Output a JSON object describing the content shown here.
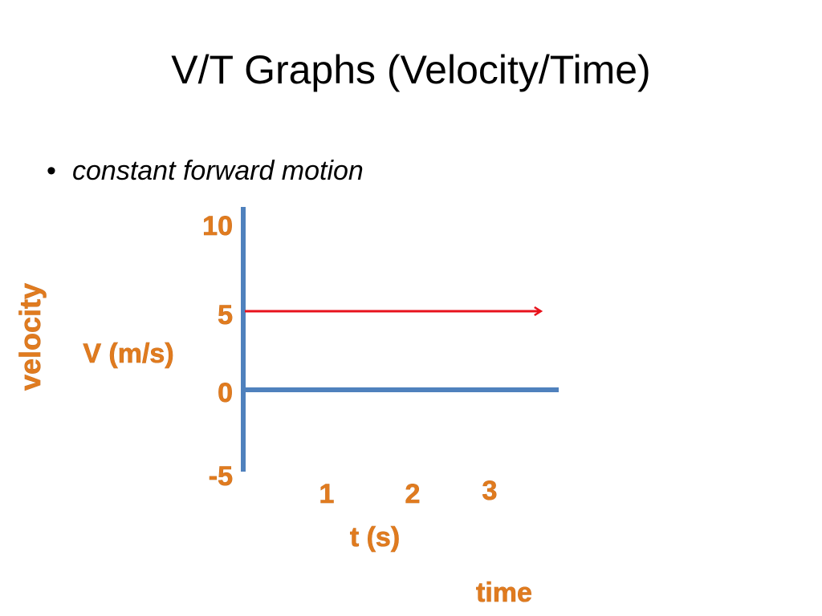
{
  "slide": {
    "title": "V/T Graphs (Velocity/Time)",
    "bullet": "constant forward motion"
  },
  "chart_data": {
    "type": "line",
    "ylabel": "V (m/s)",
    "ylabel_outer": "velocity",
    "xlabel": "t (s)",
    "xlabel_outer": "time",
    "y_ticks": [
      "10",
      "5",
      "0",
      "-5"
    ],
    "x_ticks": [
      "1",
      "2",
      "3"
    ],
    "ylim": [
      -5,
      10
    ],
    "grid": false,
    "series": [
      {
        "x": [
          0,
          3.6
        ],
        "y": [
          5,
          5
        ],
        "color": "#e8121c",
        "arrow": true
      }
    ],
    "colors": {
      "axis": "#4f81bd",
      "label": "#e07b1f",
      "series": "#e8121c"
    }
  }
}
